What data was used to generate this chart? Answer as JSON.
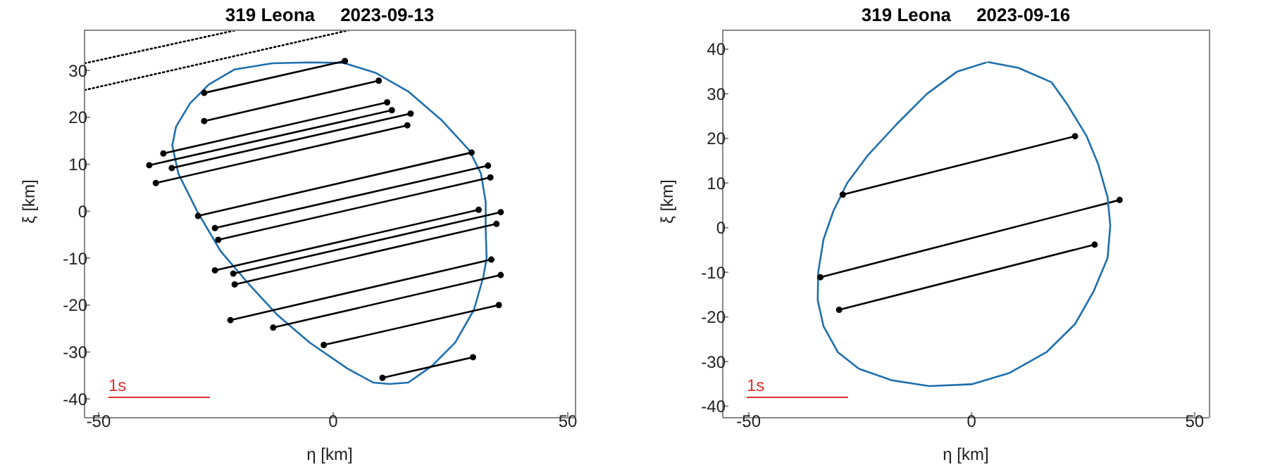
{
  "chart_data": [
    {
      "type": "line",
      "title": "319 Leona     2023-09-13",
      "xlabel": "η [km]",
      "ylabel": "ξ [km]",
      "xlim": [
        -53,
        51.5
      ],
      "ylim": [
        -44,
        38.7
      ],
      "xticks": [
        -50,
        0,
        50
      ],
      "yticks": [
        -40,
        -30,
        -20,
        -10,
        0,
        10,
        20,
        30
      ],
      "grid": false,
      "annotations": [
        "1s"
      ],
      "series": [
        {
          "color": "#000000",
          "marker": "none",
          "line_style": "dotted",
          "x": [
            -53,
            -21
          ],
          "values": [
            31.5,
            38.5
          ]
        },
        {
          "color": "#000000",
          "marker": "none",
          "line_style": "dotted",
          "x": [
            -53,
            4
          ],
          "values": [
            25.8,
            38.7
          ]
        },
        {
          "color": "#1f6fae",
          "marker": "none",
          "line_style": "solid",
          "x": [
            2.5,
            9,
            16,
            23,
            29,
            31.5,
            32.5,
            32.5,
            32.7,
            32,
            30,
            26,
            21,
            16,
            12,
            8.5,
            3,
            -5,
            -12,
            -18,
            -24,
            -29,
            -33,
            -34.3,
            -33.5,
            -30.5,
            -26.5,
            -21,
            -13,
            -5,
            2
          ],
          "values": [
            31.5,
            29.5,
            25.5,
            19.5,
            13,
            8,
            2,
            -4,
            -10,
            -14,
            -21,
            -28,
            -33,
            -36.5,
            -36.8,
            -36.5,
            -33.5,
            -28,
            -22,
            -15.5,
            -8.5,
            0,
            8,
            14,
            18,
            23,
            27,
            30.2,
            31.5,
            31.7,
            31.6
          ]
        },
        {
          "color": "#000000",
          "marker": "circle",
          "line_style": "solid",
          "x": [
            -27.5,
            2.5
          ],
          "values": [
            25.2,
            32
          ]
        },
        {
          "color": "#000000",
          "marker": "circle",
          "line_style": "solid",
          "x": [
            -27.5,
            9.7
          ],
          "values": [
            19.2,
            27.8
          ]
        },
        {
          "color": "#000000",
          "marker": "circle",
          "line_style": "solid",
          "x": [
            -36.2,
            11.5
          ],
          "values": [
            12.3,
            23.2
          ]
        },
        {
          "color": "#000000",
          "marker": "circle",
          "line_style": "solid",
          "x": [
            -39.2,
            12.5
          ],
          "values": [
            9.8,
            21.5
          ]
        },
        {
          "color": "#000000",
          "marker": "circle",
          "line_style": "solid",
          "x": [
            -34.4,
            16.5
          ],
          "values": [
            9.2,
            20.8
          ]
        },
        {
          "color": "#000000",
          "marker": "circle",
          "line_style": "solid",
          "x": [
            -37.8,
            15.8
          ],
          "values": [
            6,
            18.3
          ]
        },
        {
          "color": "#000000",
          "marker": "circle",
          "line_style": "solid",
          "x": [
            -28.8,
            29.5
          ],
          "values": [
            -1,
            12.5
          ]
        },
        {
          "color": "#000000",
          "marker": "circle",
          "line_style": "solid",
          "x": [
            -25.2,
            33
          ],
          "values": [
            -3.6,
            9.7
          ]
        },
        {
          "color": "#000000",
          "marker": "circle",
          "line_style": "solid",
          "x": [
            -24.5,
            33.5
          ],
          "values": [
            -6.1,
            7.2
          ]
        },
        {
          "color": "#000000",
          "marker": "circle",
          "line_style": "solid",
          "x": [
            -25.2,
            31
          ],
          "values": [
            -12.6,
            0.3
          ]
        },
        {
          "color": "#000000",
          "marker": "circle",
          "line_style": "solid",
          "x": [
            -21.3,
            35.7
          ],
          "values": [
            -13.3,
            -0.2
          ]
        },
        {
          "color": "#000000",
          "marker": "circle",
          "line_style": "solid",
          "x": [
            -21,
            34.8
          ],
          "values": [
            -15.6,
            -2.7
          ]
        },
        {
          "color": "#000000",
          "marker": "circle",
          "line_style": "solid",
          "x": [
            -21.9,
            33.7
          ],
          "values": [
            -23.2,
            -10.3
          ]
        },
        {
          "color": "#000000",
          "marker": "circle",
          "line_style": "solid",
          "x": [
            -12.8,
            35.7
          ],
          "values": [
            -24.8,
            -13.6
          ]
        },
        {
          "color": "#000000",
          "marker": "circle",
          "line_style": "solid",
          "x": [
            -2,
            35.3
          ],
          "values": [
            -28.5,
            -20
          ]
        },
        {
          "color": "#000000",
          "marker": "circle",
          "line_style": "solid",
          "x": [
            10.5,
            29.8
          ],
          "values": [
            -35.5,
            -31.1
          ]
        }
      ]
    },
    {
      "type": "line",
      "title": "319 Leona     2023-09-16",
      "xlabel": "η [km]",
      "ylabel": "ξ [km]",
      "xlim": [
        -55.8,
        53.2
      ],
      "ylim": [
        -42.6,
        44.4
      ],
      "xticks": [
        -50,
        0,
        50
      ],
      "yticks": [
        -40,
        -30,
        -20,
        -10,
        0,
        10,
        20,
        30,
        40
      ],
      "grid": false,
      "annotations": [
        "1s"
      ],
      "series": [
        {
          "color": "#000000",
          "marker": "circle",
          "line_style": "solid",
          "x": [
            -28.9,
            23.2
          ],
          "values": [
            7.4,
            20.5
          ]
        },
        {
          "color": "#000000",
          "marker": "circle",
          "line_style": "solid",
          "x": [
            -33.9,
            33.2
          ],
          "values": [
            -11.1,
            6.2
          ]
        },
        {
          "color": "#000000",
          "marker": "circle",
          "line_style": "solid",
          "x": [
            -29.7,
            27.6
          ],
          "values": [
            -18.4,
            -3.8
          ]
        },
        {
          "color": "#1f6fae",
          "marker": "none",
          "line_style": "solid",
          "x": [
            3.7,
            10.5,
            17.9,
            21.6,
            25.8,
            28.4,
            30.5,
            31.1,
            30.5,
            27.4,
            23.2,
            16.8,
            8.4,
            0,
            -9.5,
            -17.9,
            -25.3,
            -30,
            -33.2,
            -34.5,
            -34.4,
            -33.2,
            -31,
            -27.9,
            -23.2,
            -16.8,
            -10,
            -3.2,
            3.2
          ],
          "values": [
            37.1,
            35.8,
            32.6,
            27.4,
            20.5,
            14.2,
            6.8,
            0.5,
            -6.8,
            -14.2,
            -21.6,
            -27.9,
            -32.6,
            -35.1,
            -35.5,
            -34.2,
            -31.6,
            -27.9,
            -22.1,
            -16.3,
            -10,
            -2.6,
            3.7,
            10,
            16.3,
            23.2,
            30,
            35,
            37
          ]
        }
      ]
    }
  ]
}
